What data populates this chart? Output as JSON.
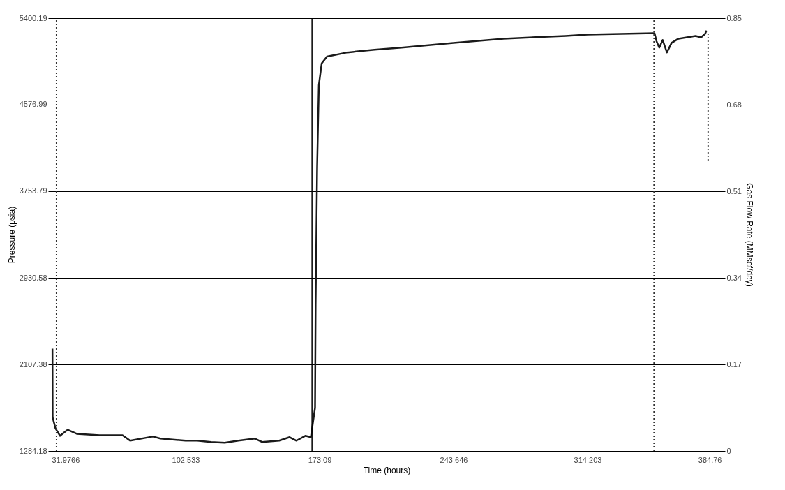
{
  "chart_data": {
    "type": "line",
    "xlabel": "Time (hours)",
    "ylabel": "Pressure (psia)",
    "y2label": "Gas Flow Rate (MMscf/day)",
    "xlim": [
      31.9766,
      384.76
    ],
    "xticks": [
      31.9766,
      102.533,
      173.09,
      243.646,
      314.203,
      384.76
    ],
    "ylim": [
      1284.18,
      5400.19
    ],
    "yticks": [
      1284.18,
      2107.38,
      2930.58,
      3753.79,
      4576.99,
      5400.19
    ],
    "y2lim": [
      0,
      0.85
    ],
    "y2ticks": [
      0,
      0.17,
      0.34,
      0.51,
      0.68,
      0.85
    ],
    "grid": true,
    "legend": false,
    "ref_lines": [
      {
        "axis": "x",
        "value": 169.1,
        "color": "#000000",
        "line_style": "solid"
      }
    ],
    "series": [
      {
        "color": "#1a1a1a",
        "line_style": "solid",
        "x": [
          32.4,
          32.5,
          34.0,
          36.4,
          40.4,
          45.2,
          57.2,
          69.3,
          73.3,
          85.3,
          89.3,
          102.5,
          108.7,
          115.9,
          123.1,
          130.3,
          139.0,
          142.8,
          151.8,
          157.3,
          160.9,
          165.6,
          168.5,
          170.7,
          171.0,
          171.8,
          172.7,
          174.2,
          177.0,
          187.7,
          202.0,
          216.2,
          243.6,
          270.0,
          302.6,
          314.2,
          349.5,
          350.6,
          352.0,
          353.8,
          356.0,
          358.5,
          362.1,
          371.1,
          374.0,
          376.1,
          376.9
        ],
        "values": [
          2256,
          1604,
          1499,
          1428,
          1486,
          1447,
          1434,
          1434,
          1382,
          1421,
          1402,
          1382,
          1382,
          1369,
          1362,
          1382,
          1402,
          1369,
          1382,
          1415,
          1382,
          1428,
          1415,
          1695,
          2674,
          3978,
          4761,
          4970,
          5035,
          5074,
          5100,
          5120,
          5165,
          5205,
          5231,
          5244,
          5257,
          5178,
          5120,
          5192,
          5074,
          5165,
          5205,
          5231,
          5218,
          5251,
          5283
        ]
      },
      {
        "axis": "y2",
        "color": "#333333",
        "line_style": "dotted",
        "x": [
          34.5,
          34.5
        ],
        "values": [
          0,
          0.85
        ]
      },
      {
        "axis": "y2",
        "color": "#333333",
        "line_style": "dotted",
        "x": [
          349.2,
          349.2
        ],
        "values": [
          0,
          0.85
        ]
      },
      {
        "axis": "y2",
        "color": "#333333",
        "line_style": "dotted",
        "x": [
          377.7,
          377.7
        ],
        "values": [
          0.82,
          0.57
        ]
      }
    ]
  }
}
